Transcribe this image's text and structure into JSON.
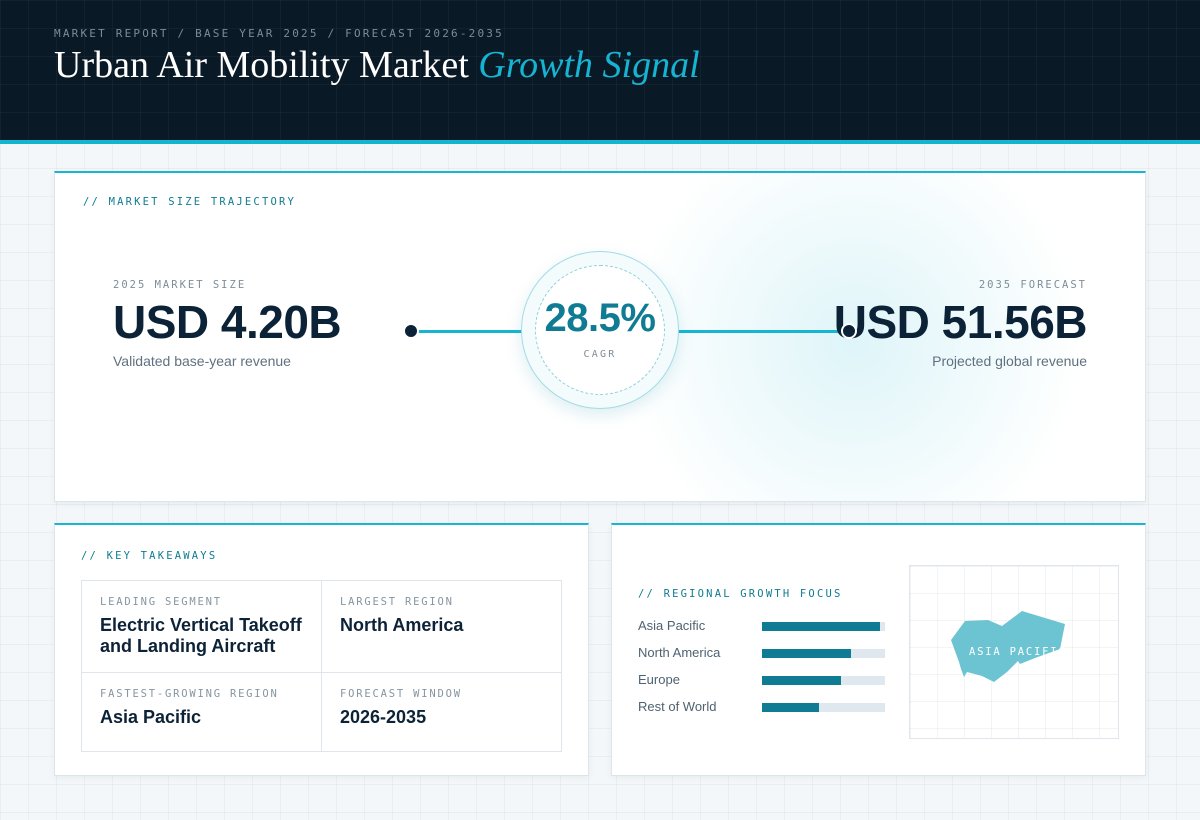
{
  "header": {
    "breadcrumb": "MARKET REPORT / BASE YEAR 2025 / FORECAST 2026-2035",
    "title_main": "Urban Air Mobility Market",
    "title_accent": "Growth Signal"
  },
  "trajectory": {
    "section_title": "// MARKET SIZE TRAJECTORY",
    "base": {
      "label": "2025 MARKET SIZE",
      "value": "USD 4.20B",
      "caption": "Validated base-year revenue"
    },
    "forecast": {
      "label": "2035 FORECAST",
      "value": "USD 51.56B",
      "caption": "Projected global revenue"
    },
    "cagr": {
      "value": "28.5%",
      "label": "CAGR"
    }
  },
  "takeaways": {
    "section_title": "// KEY TAKEAWAYS",
    "items": [
      {
        "key": "LEADING SEGMENT",
        "value": "Electric Vertical Takeoff and Landing Aircraft"
      },
      {
        "key": "LARGEST REGION",
        "value": "North America"
      },
      {
        "key": "FASTEST-GROWING REGION",
        "value": "Asia Pacific"
      },
      {
        "key": "FORECAST WINDOW",
        "value": "2026-2035"
      }
    ]
  },
  "regional": {
    "section_title": "// REGIONAL GROWTH FOCUS",
    "bar_color": "#0f7c93",
    "track_color": "#dfe8ee",
    "regions": [
      {
        "name": "Asia Pacific",
        "level": 0.96
      },
      {
        "name": "North America",
        "level": 0.72
      },
      {
        "name": "Europe",
        "level": 0.64
      },
      {
        "name": "Rest of World",
        "level": 0.46
      }
    ],
    "map": {
      "highlight_label": "ASIA PACIFIC",
      "highlight_color": "#6cc4d2"
    }
  }
}
